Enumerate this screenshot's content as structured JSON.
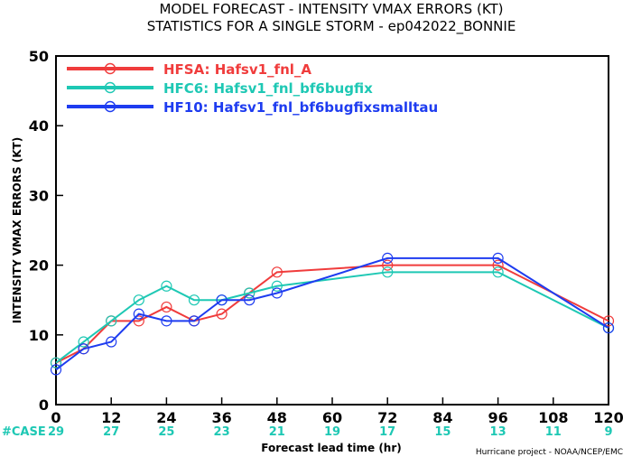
{
  "chart_data": {
    "type": "line",
    "title": "MODEL FORECAST - INTENSITY VMAX ERRORS (KT)",
    "subtitle": "STATISTICS FOR A SINGLE STORM - ep042022_BONNIE",
    "xlabel": "Forecast lead time (hr)",
    "ylabel": "INTENSITY VMAX ERRORS (KT)",
    "xlim": [
      0,
      120
    ],
    "ylim": [
      0,
      50
    ],
    "x_ticks": [
      0,
      12,
      24,
      36,
      48,
      60,
      72,
      84,
      96,
      108,
      120
    ],
    "y_ticks": [
      0,
      10,
      20,
      30,
      40,
      50
    ],
    "x_tick_labels": [
      "0",
      "12",
      "24",
      "36",
      "48",
      "60",
      "72",
      "84",
      "96",
      "108",
      "120"
    ],
    "y_tick_labels": [
      "0",
      "10",
      "20",
      "30",
      "40",
      "50"
    ],
    "legend_position": "top-left",
    "grid": false,
    "series": [
      {
        "name": "HFSA: Hafsv1_fnl_A",
        "color": "#f03c3c",
        "x": [
          0,
          6,
          12,
          18,
          24,
          30,
          36,
          42,
          48,
          72,
          96,
          120
        ],
        "values": [
          6,
          8,
          12,
          12,
          14,
          12,
          13,
          16,
          19,
          20,
          20,
          12
        ]
      },
      {
        "name": "HFC6: Hafsv1_fnl_bf6bugfix",
        "color": "#1ec8b4",
        "x": [
          0,
          6,
          12,
          18,
          24,
          30,
          36,
          42,
          48,
          72,
          96,
          120
        ],
        "values": [
          6,
          9,
          12,
          15,
          17,
          15,
          15,
          16,
          17,
          19,
          19,
          11
        ]
      },
      {
        "name": "HF10: Hafsv1_fnl_bf6bugfixsmalltau",
        "color": "#1e3cf0",
        "x": [
          0,
          6,
          12,
          18,
          24,
          30,
          36,
          42,
          48,
          72,
          96,
          120
        ],
        "values": [
          5,
          8,
          9,
          13,
          12,
          12,
          15,
          15,
          16,
          21,
          21,
          11
        ]
      }
    ],
    "case_counts": {
      "label": "#CASE",
      "x": [
        0,
        12,
        24,
        36,
        48,
        60,
        72,
        84,
        96,
        108,
        120
      ],
      "values": [
        "29",
        "27",
        "25",
        "23",
        "21",
        "19",
        "17",
        "15",
        "13",
        "11",
        "9"
      ]
    }
  },
  "credit": "Hurricane project - NOAA/NCEP/EMC"
}
